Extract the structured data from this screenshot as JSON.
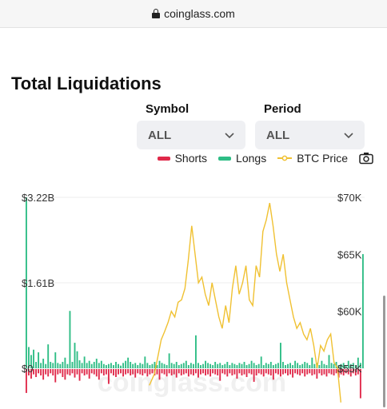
{
  "browser": {
    "url": "coinglass.com",
    "lock_icon": "lock-icon"
  },
  "title": "Total Liquidations",
  "filters": {
    "symbol": {
      "label": "Symbol",
      "value": "ALL"
    },
    "period": {
      "label": "Period",
      "value": "ALL"
    }
  },
  "legend": {
    "shorts": "Shorts",
    "longs": "Longs",
    "btc_price": "BTC Price",
    "screenshot_icon": "camera-icon"
  },
  "colors": {
    "longs": "#2ebd85",
    "shorts": "#e0294a",
    "btc_price": "#f0c132",
    "grid": "#ececec"
  },
  "watermark": "coinglass.com",
  "chart_data": {
    "type": "bar",
    "left_axis": {
      "ticks": [
        "$3.22B",
        "$1.61B",
        "$0"
      ],
      "values": [
        3.22,
        1.61,
        0
      ],
      "unit": "USD billions"
    },
    "right_axis": {
      "ticks": [
        "$70K",
        "$65K",
        "$60K",
        "$55K"
      ],
      "values": [
        70000,
        65000,
        60000,
        55000
      ],
      "unit": "USD"
    },
    "series": [
      {
        "name": "Longs",
        "values": [
          3.22,
          0.4,
          0.25,
          0.35,
          0.12,
          0.3,
          0.1,
          0.18,
          0.08,
          0.45,
          0.12,
          0.1,
          0.3,
          0.1,
          0.08,
          0.12,
          0.2,
          0.08,
          1.08,
          0.12,
          0.48,
          0.32,
          0.15,
          0.1,
          0.22,
          0.1,
          0.14,
          0.08,
          0.12,
          0.18,
          0.1,
          0.14,
          0.08,
          0.06,
          0.08,
          0.1,
          0.06,
          0.12,
          0.08,
          0.05,
          0.1,
          0.14,
          0.2,
          0.12,
          0.08,
          0.1,
          0.06,
          0.1,
          0.08,
          0.22,
          0.1,
          0.06,
          0.08,
          0.12,
          0.06,
          0.14,
          0.1,
          0.08,
          0.06,
          0.28,
          0.1,
          0.08,
          0.12,
          0.06,
          0.08,
          0.1,
          0.14,
          0.06,
          0.1,
          0.08,
          0.62,
          0.1,
          0.06,
          0.08,
          0.14,
          0.1,
          0.08,
          0.06,
          0.12,
          0.08,
          0.1,
          0.06,
          0.08,
          0.12,
          0.06,
          0.1,
          0.08,
          0.06,
          0.1,
          0.08,
          0.12,
          0.06,
          0.08,
          0.14,
          0.1,
          0.06,
          0.08,
          0.22,
          0.06,
          0.1,
          0.08,
          0.12,
          0.06,
          0.08,
          0.1,
          0.48,
          0.12,
          0.06,
          0.08,
          0.1,
          0.06,
          0.14,
          0.1,
          0.06,
          0.08,
          0.12,
          0.1,
          0.06,
          0.2,
          0.08,
          0.1,
          0.06,
          0.14,
          0.08,
          0.06,
          0.25,
          0.1,
          0.08,
          0.12,
          0.06,
          0.08,
          0.1,
          0.06,
          0.14,
          0.08,
          0.1,
          0.06,
          0.2,
          0.1,
          2.15
        ]
      },
      {
        "name": "Shorts",
        "values": [
          0.45,
          0.12,
          0.18,
          0.1,
          0.15,
          0.08,
          0.12,
          0.2,
          0.1,
          0.14,
          0.08,
          0.12,
          0.25,
          0.1,
          0.08,
          0.15,
          0.2,
          0.1,
          0.12,
          0.08,
          0.16,
          0.1,
          0.22,
          0.08,
          0.12,
          0.1,
          0.18,
          0.08,
          0.1,
          0.14,
          0.2,
          0.08,
          0.12,
          0.1,
          0.28,
          0.08,
          0.12,
          0.15,
          0.1,
          0.08,
          0.14,
          0.1,
          0.08,
          0.12,
          0.1,
          0.16,
          0.08,
          0.1,
          0.12,
          0.08,
          0.14,
          0.1,
          0.08,
          0.12,
          0.1,
          0.2,
          0.08,
          0.1,
          0.14,
          0.08,
          0.12,
          0.1,
          0.16,
          0.08,
          0.12,
          0.1,
          0.08,
          0.14,
          0.1,
          0.12,
          0.08,
          0.16,
          0.1,
          0.08,
          0.12,
          0.1,
          0.14,
          0.08,
          0.1,
          0.12,
          0.22,
          0.08,
          0.1,
          0.14,
          0.08,
          0.12,
          0.1,
          0.18,
          0.08,
          0.12,
          0.1,
          0.15,
          0.08,
          0.1,
          0.24,
          0.12,
          0.08,
          0.1,
          0.14,
          0.08,
          0.1,
          0.12,
          0.2,
          0.08,
          0.1,
          0.14,
          0.1,
          0.08,
          0.12,
          0.1,
          0.16,
          0.08,
          0.1,
          0.12,
          0.08,
          0.14,
          0.1,
          0.08,
          0.12,
          0.1,
          0.18,
          0.08,
          0.12,
          0.1,
          0.14,
          0.08,
          0.1,
          0.12,
          0.08,
          0.16,
          0.1,
          0.12,
          0.08,
          0.1,
          0.14,
          0.08,
          0.12,
          0.1,
          0.55
        ]
      },
      {
        "name": "BTC Price",
        "points": [
          [
            0.365,
            53500
          ],
          [
            0.38,
            54500
          ],
          [
            0.39,
            56000
          ],
          [
            0.4,
            57500
          ],
          [
            0.41,
            58200
          ],
          [
            0.42,
            59000
          ],
          [
            0.43,
            60000
          ],
          [
            0.44,
            59500
          ],
          [
            0.45,
            60800
          ],
          [
            0.46,
            61000
          ],
          [
            0.47,
            62000
          ],
          [
            0.48,
            64500
          ],
          [
            0.49,
            67500
          ],
          [
            0.5,
            65000
          ],
          [
            0.51,
            62500
          ],
          [
            0.52,
            63000
          ],
          [
            0.53,
            61500
          ],
          [
            0.54,
            60500
          ],
          [
            0.55,
            62500
          ],
          [
            0.56,
            61000
          ],
          [
            0.57,
            59500
          ],
          [
            0.58,
            58500
          ],
          [
            0.59,
            60500
          ],
          [
            0.6,
            59000
          ],
          [
            0.61,
            62000
          ],
          [
            0.62,
            64000
          ],
          [
            0.63,
            61500
          ],
          [
            0.64,
            62500
          ],
          [
            0.65,
            64000
          ],
          [
            0.66,
            61000
          ],
          [
            0.67,
            60500
          ],
          [
            0.68,
            64000
          ],
          [
            0.69,
            63000
          ],
          [
            0.7,
            67000
          ],
          [
            0.71,
            68000
          ],
          [
            0.72,
            69500
          ],
          [
            0.73,
            67500
          ],
          [
            0.74,
            65000
          ],
          [
            0.75,
            63500
          ],
          [
            0.76,
            65000
          ],
          [
            0.77,
            62500
          ],
          [
            0.78,
            61000
          ],
          [
            0.79,
            59500
          ],
          [
            0.8,
            58500
          ],
          [
            0.81,
            59000
          ],
          [
            0.82,
            58000
          ],
          [
            0.83,
            57500
          ],
          [
            0.84,
            58500
          ],
          [
            0.85,
            57000
          ],
          [
            0.86,
            55000
          ],
          [
            0.87,
            57000
          ],
          [
            0.88,
            56500
          ],
          [
            0.89,
            57500
          ],
          [
            0.9,
            58000
          ],
          [
            0.91,
            55500
          ],
          [
            0.92,
            55000
          ],
          [
            0.93,
            52000
          ]
        ],
        "y_range": [
          50000,
          70000
        ]
      }
    ]
  }
}
